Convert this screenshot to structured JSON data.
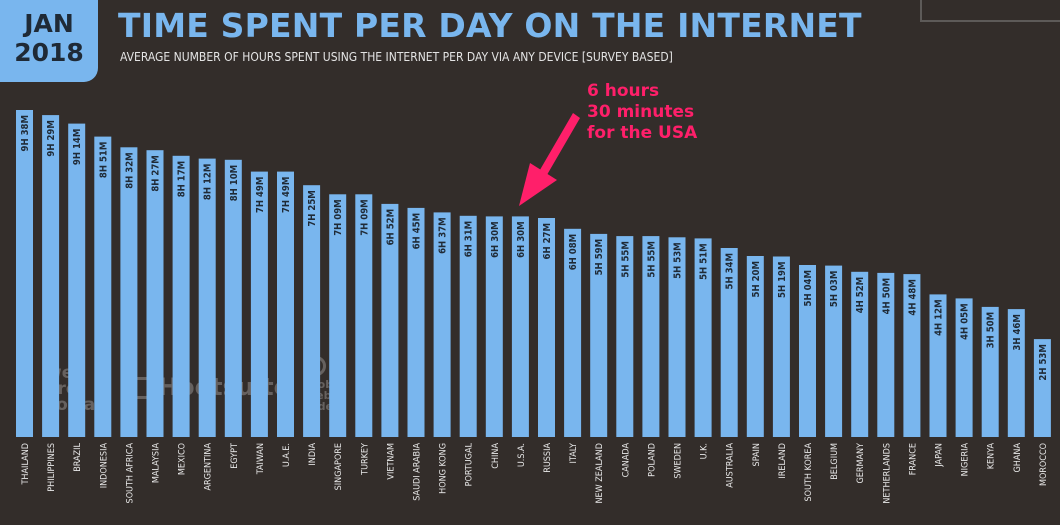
{
  "badge": {
    "month": "JAN",
    "year": "2018"
  },
  "header": {
    "title": "TIME SPENT PER DAY ON THE INTERNET",
    "subtitle": "AVERAGE NUMBER OF HOURS SPENT USING THE INTERNET PER DAY VIA ANY DEVICE [SURVEY BASED]"
  },
  "callout": {
    "line1": "6 hours",
    "line2": "30 minutes",
    "line3": "for the USA",
    "color": "#ff1f6a"
  },
  "watermarks": {
    "brand1_line1": "we",
    "brand1_line2": "are",
    "brand1_line3": "social",
    "brand2": "Hootsuite",
    "brand3_line1": "global",
    "brand3_line2": "web",
    "brand3_line3": "index"
  },
  "colors": {
    "background": "#332d2a",
    "bar": "#79b6ee",
    "bar_label": "#1f2a36",
    "accent": "#79b6ee"
  },
  "chart_data": {
    "type": "bar",
    "orientation": "vertical",
    "unit": "hours",
    "ylim": [
      0,
      10
    ],
    "grid": false,
    "categories": [
      "THAILAND",
      "PHILIPPINES",
      "BRAZIL",
      "INDONESIA",
      "SOUTH AFRICA",
      "MALAYSIA",
      "MEXICO",
      "ARGENTINA",
      "EGYPT",
      "TAIWAN",
      "U.A.E.",
      "INDIA",
      "SINGAPORE",
      "TURKEY",
      "VIETNAM",
      "SAUDI ARABIA",
      "HONG KONG",
      "PORTUGAL",
      "CHINA",
      "U.S.A.",
      "RUSSIA",
      "ITALY",
      "NEW ZEALAND",
      "CANADA",
      "POLAND",
      "SWEDEN",
      "U.K.",
      "AUSTRALIA",
      "SPAIN",
      "IRELAND",
      "SOUTH KOREA",
      "BELGIUM",
      "GERMANY",
      "NETHERLANDS",
      "FRANCE",
      "JAPAN",
      "NIGERIA",
      "KENYA",
      "GHANA",
      "MOROCCO"
    ],
    "labels": [
      "9H 38M",
      "9H 29M",
      "9H 14M",
      "8H 51M",
      "8H 32M",
      "8H 27M",
      "8H 17M",
      "8H 12M",
      "8H 10M",
      "7H 49M",
      "7H 49M",
      "7H 25M",
      "7H 09M",
      "7H 09M",
      "6H 52M",
      "6H 45M",
      "6H 37M",
      "6H 31M",
      "6H 30M",
      "6H 30M",
      "6H 27M",
      "6H 08M",
      "5H 59M",
      "5H 55M",
      "5H 55M",
      "5H 53M",
      "5H 51M",
      "5H 34M",
      "5H 20M",
      "5H 19M",
      "5H 04M",
      "5H 03M",
      "4H 52M",
      "4H 50M",
      "4H 48M",
      "4H 12M",
      "4H 05M",
      "3H 50M",
      "3H 46M",
      "2H 53M"
    ],
    "values": [
      9.633,
      9.483,
      9.233,
      8.85,
      8.533,
      8.45,
      8.283,
      8.2,
      8.167,
      7.817,
      7.817,
      7.417,
      7.15,
      7.15,
      6.867,
      6.75,
      6.617,
      6.517,
      6.5,
      6.5,
      6.45,
      6.133,
      5.983,
      5.917,
      5.917,
      5.883,
      5.85,
      5.567,
      5.333,
      5.317,
      5.067,
      5.05,
      4.867,
      4.833,
      4.8,
      4.2,
      4.083,
      3.833,
      3.767,
      2.883
    ],
    "highlight": "U.S.A."
  }
}
